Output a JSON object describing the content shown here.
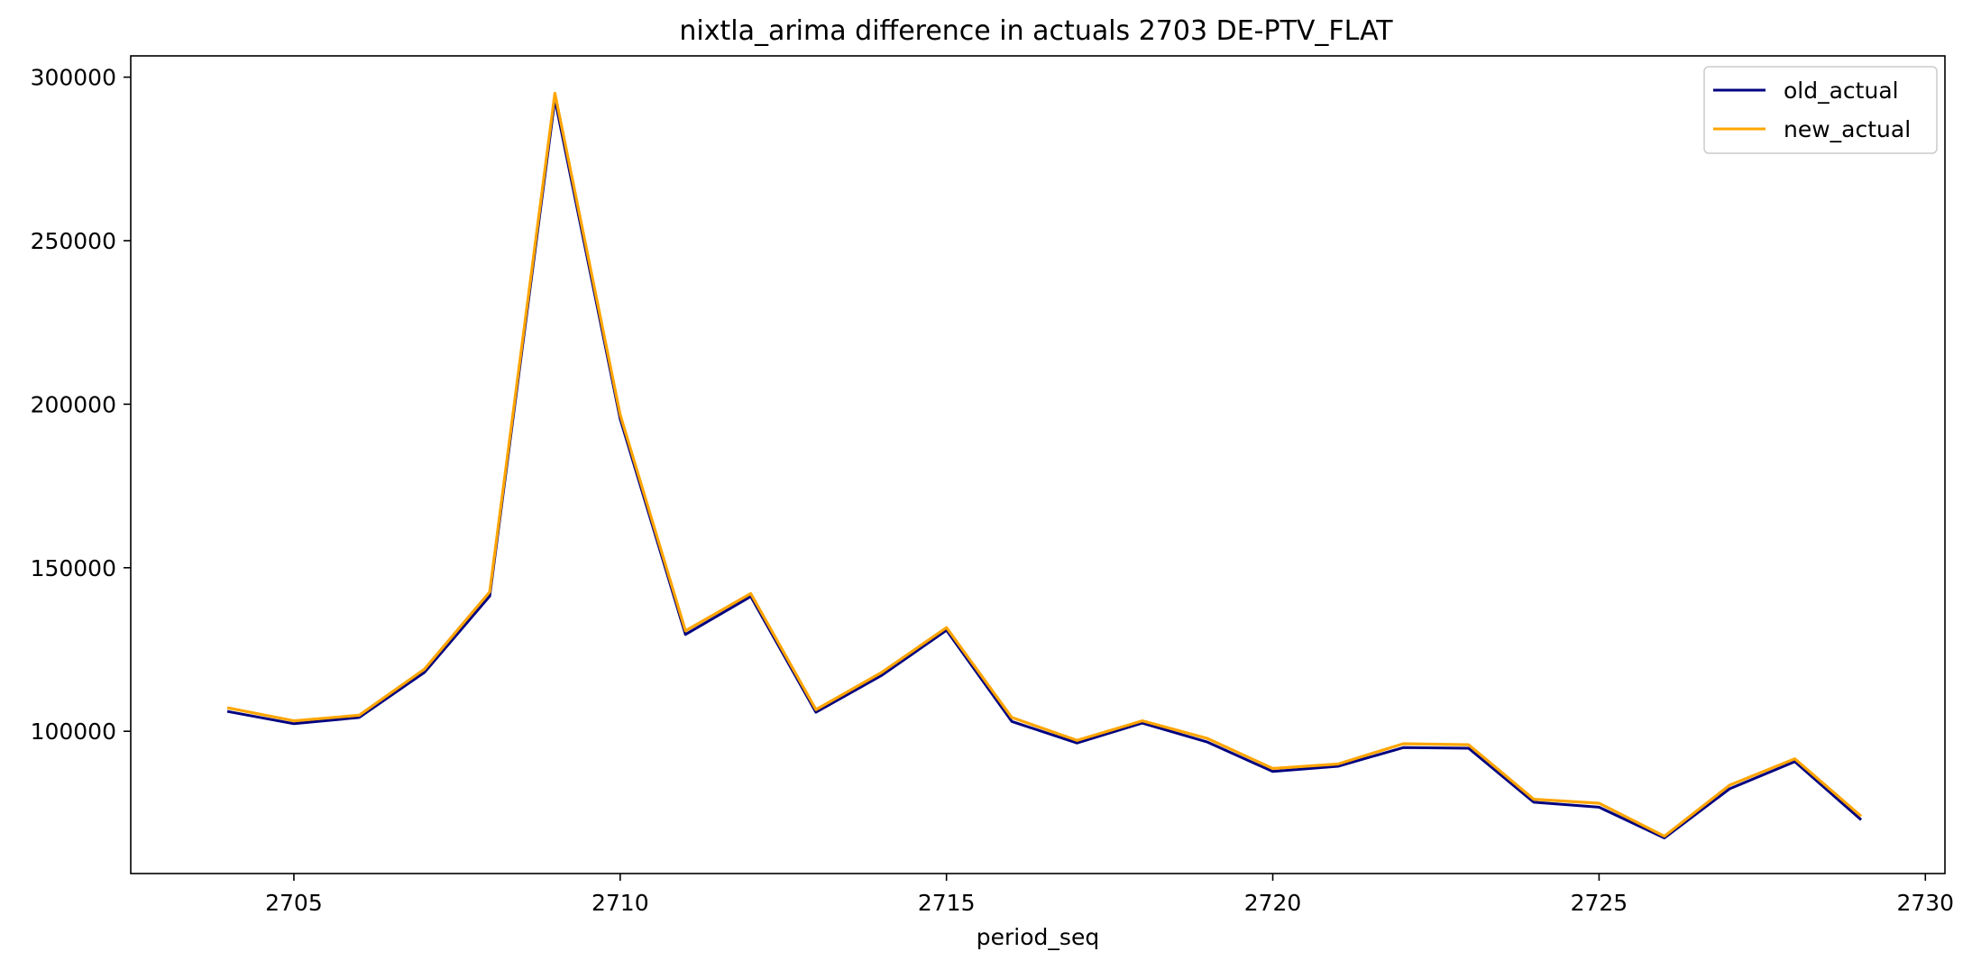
{
  "chart_data": {
    "type": "line",
    "title": "nixtla_arima difference in actuals 2703 DE-PTV_FLAT",
    "xlabel": "period_seq",
    "ylabel": "",
    "x": [
      2704,
      2705,
      2706,
      2707,
      2708,
      2709,
      2710,
      2711,
      2712,
      2713,
      2714,
      2715,
      2716,
      2717,
      2718,
      2719,
      2720,
      2721,
      2722,
      2723,
      2724,
      2725,
      2726,
      2727,
      2728,
      2729
    ],
    "series": [
      {
        "name": "old_actual",
        "color": "#000080",
        "values": [
          106000,
          102300,
          104200,
          118000,
          141300,
          293200,
          195500,
          129600,
          141200,
          105800,
          117000,
          130900,
          103000,
          96400,
          102500,
          96700,
          87700,
          89300,
          95000,
          94800,
          78300,
          76800,
          67400,
          82400,
          90700,
          73200
        ]
      },
      {
        "name": "new_actual",
        "color": "#FFA500",
        "values": [
          107100,
          103200,
          104900,
          119000,
          142600,
          295100,
          196800,
          130700,
          142100,
          106600,
          117900,
          131700,
          104200,
          97200,
          103200,
          97800,
          88600,
          90000,
          96200,
          95900,
          79200,
          78000,
          67900,
          83500,
          91600,
          74300
        ]
      }
    ],
    "xlim": [
      2702.5,
      2730.3
    ],
    "ylim": [
      56500,
      306500
    ],
    "xticks": [
      2705,
      2710,
      2715,
      2720,
      2725,
      2730
    ],
    "yticks": [
      100000,
      150000,
      200000,
      250000,
      300000
    ],
    "legend_position": "upper right",
    "grid": false
  }
}
